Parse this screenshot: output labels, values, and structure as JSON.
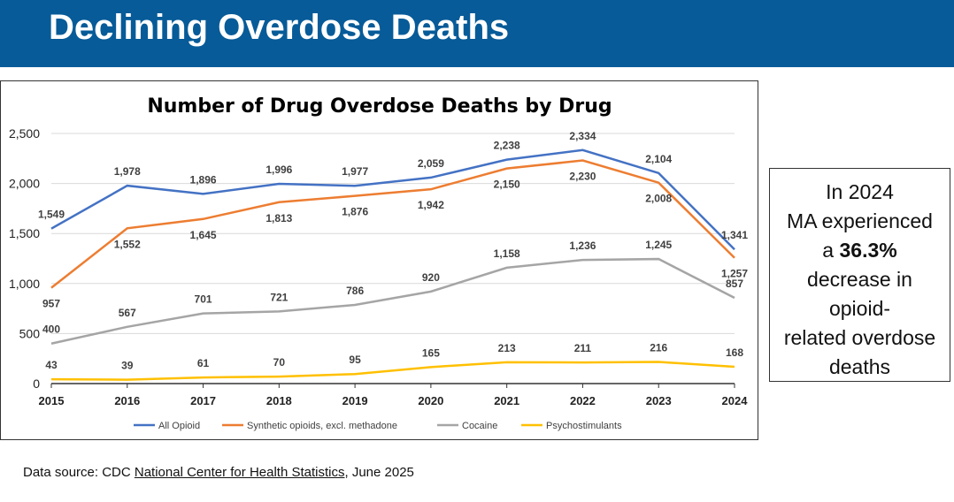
{
  "header": {
    "title": "Declining Overdose Deaths"
  },
  "callout": {
    "line1": "In 2024",
    "line2": "MA experienced",
    "line3_pre": "a ",
    "line3_bold": "36.3%",
    "line4": "decrease in",
    "line5": "opioid-",
    "line6": "related overdose",
    "line7": "deaths"
  },
  "source": {
    "prefix": "Data source: CDC ",
    "link": "National Center for Health Statistics",
    "suffix": ", June 2025"
  },
  "chart_data": {
    "type": "line",
    "title": "Number of Drug Overdose Deaths by Drug",
    "x": [
      "2015",
      "2016",
      "2017",
      "2018",
      "2019",
      "2020",
      "2021",
      "2022",
      "2023",
      "2024"
    ],
    "ylim": [
      0,
      2500
    ],
    "yticks": [
      "0",
      "500",
      "1,000",
      "1,500",
      "2,000",
      "2,500"
    ],
    "grid": true,
    "legend": "bottom",
    "series": [
      {
        "name": "All Opioid",
        "color": "#4472c4",
        "values": [
          1549,
          1978,
          1896,
          1996,
          1977,
          2059,
          2238,
          2334,
          2104,
          1341
        ],
        "labels": [
          "1,549",
          "1,978",
          "1,896",
          "1,996",
          "1,977",
          "2,059",
          "2,238",
          "2,334",
          "2,104",
          "1,341"
        ]
      },
      {
        "name": "Synthetic opioids, excl. methadone",
        "color": "#ed7d31",
        "values": [
          957,
          1552,
          1645,
          1813,
          1876,
          1942,
          2150,
          2230,
          2008,
          1257
        ],
        "labels": [
          "957",
          "1,552",
          "1,645",
          "1,813",
          "1,876",
          "1,942",
          "2,150",
          "2,230",
          "2,008",
          "1,257"
        ]
      },
      {
        "name": "Cocaine",
        "color": "#a5a5a5",
        "values": [
          400,
          567,
          701,
          721,
          786,
          920,
          1158,
          1236,
          1245,
          857
        ],
        "labels": [
          "400",
          "567",
          "701",
          "721",
          "786",
          "920",
          "1,158",
          "1,236",
          "1,245",
          "857"
        ]
      },
      {
        "name": "Psychostimulants",
        "color": "#ffc000",
        "values": [
          43,
          39,
          61,
          70,
          95,
          165,
          213,
          211,
          216,
          168
        ],
        "labels": [
          "43",
          "39",
          "61",
          "70",
          "95",
          "165",
          "213",
          "211",
          "216",
          "168"
        ]
      }
    ]
  }
}
